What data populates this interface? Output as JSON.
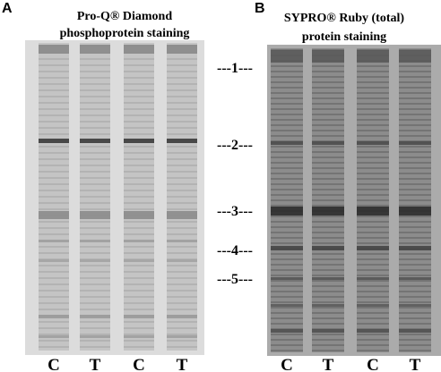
{
  "panels": [
    {
      "letter": "A",
      "title": [
        "Pro-Q® Diamond",
        "phosphoprotein staining"
      ],
      "lanes": [
        "C",
        "T",
        "C",
        "T"
      ]
    },
    {
      "letter": "B",
      "title": [
        "SYPRO® Ruby (total)",
        "protein staining"
      ],
      "lanes": [
        "C",
        "T",
        "C",
        "T"
      ]
    }
  ],
  "markers": [
    "---1---",
    "---2---",
    "---3---",
    "---4---",
    "---5---"
  ]
}
